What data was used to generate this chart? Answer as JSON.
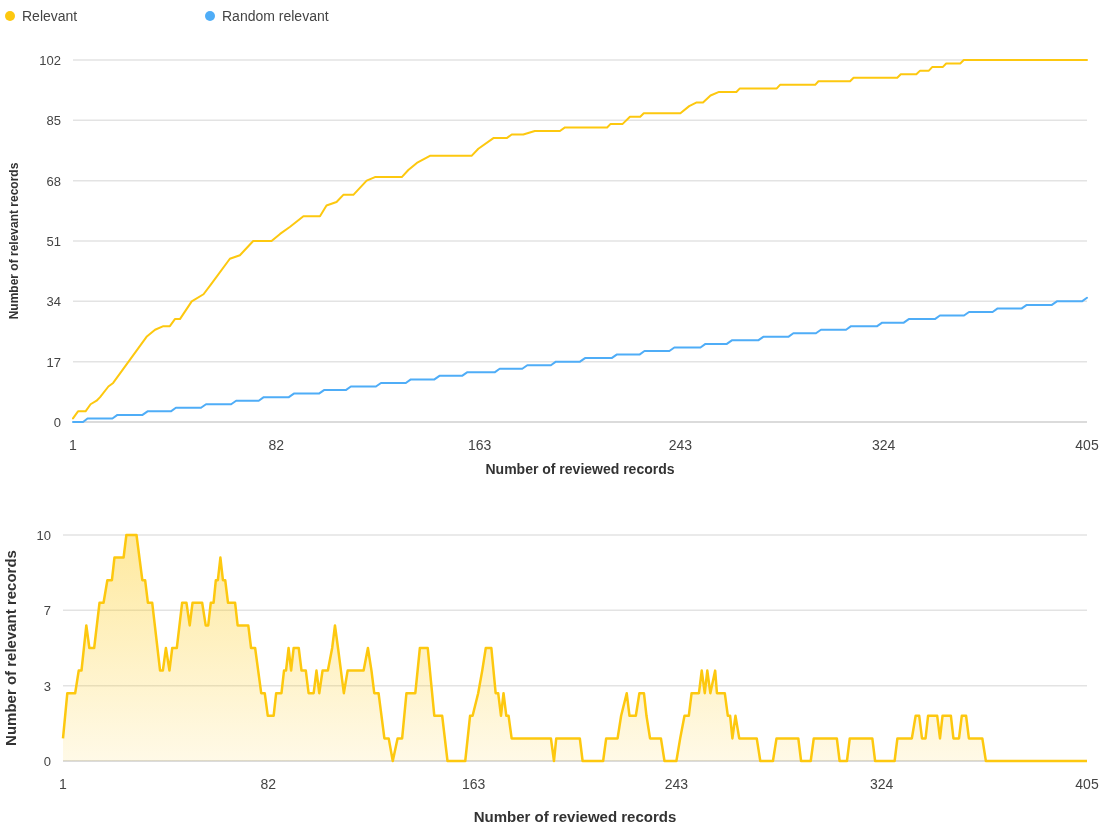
{
  "chart_data": [
    {
      "type": "line",
      "xlabel": "Number of reviewed records",
      "ylabel": "Number of relevant records",
      "xlim": [
        1,
        405
      ],
      "xticks": [
        1,
        82,
        163,
        243,
        324,
        405
      ],
      "ylim": [
        0,
        102
      ],
      "yticks": [
        0,
        17,
        34,
        51,
        68,
        85,
        102
      ],
      "grid": "y",
      "legend": "top left",
      "series": [
        {
          "name": "Relevant",
          "color": "#fdc80f",
          "x": [
            1,
            3,
            6,
            8,
            10.4,
            11.8,
            15.1,
            17,
            30.3,
            33.7,
            37,
            39.6,
            41.6,
            43.6,
            48.3,
            53,
            56.2,
            63.5,
            67.5,
            72.8,
            80.1,
            83.5,
            87.5,
            92.8,
            99.4,
            102,
            106,
            108.7,
            112.7,
            118,
            121.3,
            132,
            134.6,
            138,
            143.2,
            159.8,
            162.5,
            168.5,
            173.8,
            175.8,
            180.4,
            185,
            195,
            197,
            203,
            213.8,
            215.2,
            220,
            222.9,
            227,
            228.4,
            243,
            246.5,
            249.3,
            252,
            255,
            258.4,
            265.3,
            266.7,
            281.4,
            282.7,
            296.7,
            298,
            310.6,
            312,
            329.4,
            330.8,
            337,
            338.5,
            342,
            343.3,
            347.5,
            348.9,
            354.5,
            355.9,
            405
          ],
          "values": [
            1,
            3,
            3,
            5,
            6,
            7,
            10,
            11,
            24,
            26,
            27,
            27,
            29,
            29,
            34,
            36,
            39,
            46,
            47,
            51,
            51,
            53,
            55,
            58,
            58,
            61,
            62,
            64,
            64,
            68,
            69,
            69,
            71,
            73,
            75,
            75,
            77,
            80,
            80,
            81,
            81,
            82,
            82,
            83,
            83,
            83,
            84,
            84,
            86,
            86,
            87,
            87,
            89,
            90,
            90,
            92,
            93,
            93,
            94,
            94,
            95,
            95,
            96,
            96,
            97,
            97,
            98,
            98,
            99,
            99,
            100,
            100,
            101,
            101,
            102,
            102
          ]
        },
        {
          "name": "Random relevant",
          "color": "#4fadf7",
          "x": [
            1,
            5,
            6.8,
            16.7,
            18.7,
            28.7,
            30.7,
            40,
            42,
            52,
            54,
            64,
            66,
            75,
            77,
            87,
            89,
            99,
            101,
            109.7,
            111.7,
            121.7,
            123.7,
            133.6,
            135.6,
            145,
            147,
            156,
            158,
            169,
            171,
            180,
            182,
            191.4,
            193.4,
            203,
            205,
            215.6,
            217.6,
            226.7,
            228.7,
            238.6,
            240.6,
            251,
            253,
            261.5,
            263.5,
            274,
            276,
            286,
            288,
            297,
            299,
            309,
            311,
            321.4,
            323.4,
            332,
            334,
            344.4,
            346.4,
            356,
            358,
            367.4,
            369.4,
            379,
            381,
            391,
            393,
            403,
            405
          ],
          "values": [
            0,
            0,
            1,
            1,
            2,
            2,
            3,
            3,
            4,
            4,
            5,
            5,
            6,
            6,
            7,
            7,
            8,
            8,
            9,
            9,
            10,
            10,
            11,
            11,
            12,
            12,
            13,
            13,
            14,
            14,
            15,
            15,
            16,
            16,
            17,
            17,
            18,
            18,
            19,
            19,
            20,
            20,
            21,
            21,
            22,
            22,
            23,
            23,
            24,
            24,
            25,
            25,
            26,
            26,
            27,
            27,
            28,
            28,
            29,
            29,
            30,
            30,
            31,
            31,
            32,
            32,
            33,
            33,
            34,
            34,
            35
          ]
        }
      ]
    },
    {
      "type": "area",
      "xlabel": "Number of reviewed records",
      "ylabel": "Number of relevant records",
      "xlim": [
        1,
        405
      ],
      "xticks": [
        1,
        82,
        163,
        243,
        324,
        405
      ],
      "ylim": [
        0,
        10
      ],
      "yticks": [
        0,
        {
          "value": 3.33,
          "label": "3"
        },
        {
          "value": 6.67,
          "label": "7"
        },
        10
      ],
      "grid": "y",
      "series": [
        {
          "color": "#fdc80f",
          "x": [
            1,
            2.7,
            5.8,
            7.2,
            8.3,
            10.2,
            11.4,
            13.3,
            15.4,
            17,
            18.5,
            20.3,
            21.3,
            24.9,
            26,
            30,
            32.3,
            33.4,
            34.5,
            36.2,
            39.3,
            40.4,
            41.6,
            43,
            44.1,
            45.9,
            48,
            49.7,
            51,
            52.1,
            55.9,
            57.3,
            58.3,
            59.3,
            60.4,
            61.3,
            62.1,
            63.1,
            64.1,
            65,
            66.1,
            68.9,
            69.9,
            74.1,
            75.2,
            76.8,
            79.2,
            80.6,
            81.8,
            84.1,
            85.1,
            87.2,
            88.2,
            89,
            90,
            91,
            92,
            94,
            95.1,
            96.8,
            97.9,
            99.9,
            101,
            102.1,
            103.4,
            105.5,
            107.2,
            108.3,
            109.5,
            111.8,
            113.3,
            119.6,
            121.3,
            122.7,
            123.8,
            125.5,
            127.8,
            129.5,
            131.1,
            133,
            134.8,
            136.5,
            140,
            141.8,
            144.9,
            147.5,
            150.6,
            152.7,
            159.7,
            161.6,
            162.6,
            164.8,
            166.4,
            167.8,
            170,
            171.7,
            172.7,
            173.8,
            174.8,
            175.9,
            176.8,
            178,
            193.5,
            194.7,
            195.6,
            204.9,
            206,
            214.1,
            215.3,
            219.8,
            221.2,
            223.4,
            224.5,
            227,
            228.4,
            230.2,
            231.2,
            232.6,
            236.9,
            238.3,
            243,
            244.5,
            246.2,
            247.9,
            249,
            251.9,
            253,
            254.2,
            255.2,
            256.4,
            258.3,
            259,
            262.1,
            263.3,
            264.2,
            265.1,
            266.3,
            267.8,
            274.7,
            276.1,
            281.1,
            282.5,
            291.1,
            292.2,
            296,
            297.2,
            306.3,
            307.4,
            310.3,
            311.4,
            320.3,
            321.4,
            329.1,
            330.2,
            335.9,
            337.4,
            338.8,
            339.9,
            341.3,
            342.3,
            345.9,
            347,
            348,
            351.3,
            352.3,
            354.5,
            355.6,
            357.3,
            358.4,
            363.7,
            365.1,
            405
          ],
          "values": [
            1,
            3,
            3,
            4,
            4,
            6,
            5,
            5,
            7,
            7,
            8,
            8,
            9,
            9,
            10,
            10,
            8,
            8,
            7,
            7,
            4,
            4,
            5,
            4,
            5,
            5,
            7,
            7,
            6,
            7,
            7,
            6,
            6,
            7,
            7,
            8,
            8,
            9,
            8,
            8,
            7,
            7,
            6,
            6,
            5,
            5,
            3,
            3,
            2,
            2,
            3,
            3,
            4,
            4,
            5,
            4,
            5,
            5,
            4,
            4,
            3,
            3,
            4,
            3,
            4,
            4,
            5,
            6,
            5,
            3,
            4,
            4,
            5,
            4,
            3,
            3,
            1,
            1,
            0,
            1,
            1,
            3,
            3,
            5,
            5,
            2,
            2,
            0,
            0,
            2,
            2,
            3,
            4,
            5,
            5,
            3,
            3,
            2,
            3,
            2,
            2,
            1,
            1,
            0,
            1,
            1,
            0,
            0,
            1,
            1,
            2,
            3,
            2,
            2,
            3,
            3,
            2,
            1,
            1,
            0,
            0,
            1,
            2,
            2,
            3,
            3,
            4,
            3,
            4,
            3,
            4,
            3,
            3,
            2,
            2,
            1,
            2,
            1,
            1,
            0,
            0,
            1,
            1,
            0,
            0,
            1,
            1,
            0,
            0,
            1,
            1,
            0,
            0,
            1,
            1,
            2,
            2,
            1,
            1,
            2,
            2,
            1,
            2,
            2,
            1,
            1,
            2,
            2,
            1,
            1,
            0,
            0
          ]
        }
      ]
    }
  ]
}
